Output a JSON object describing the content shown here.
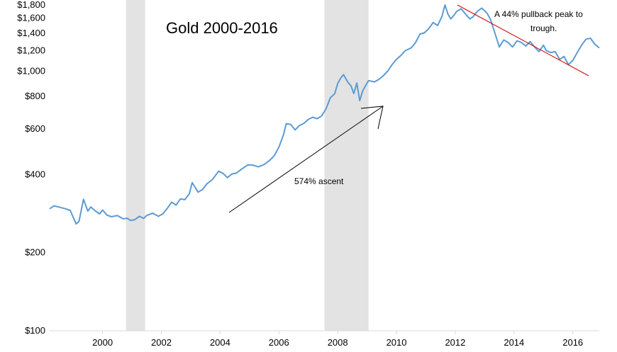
{
  "chart_data": {
    "type": "line",
    "title": "Gold 2000-2016",
    "xlabel": "",
    "ylabel": "",
    "y_scale": "log",
    "ylim": [
      100,
      1800
    ],
    "xlim": [
      1998.2,
      2016.9
    ],
    "y_ticks": [
      {
        "value": 100,
        "label": "$100"
      },
      {
        "value": 200,
        "label": "$200"
      },
      {
        "value": 400,
        "label": "$400"
      },
      {
        "value": 600,
        "label": "$600"
      },
      {
        "value": 800,
        "label": "$800"
      },
      {
        "value": 1000,
        "label": "$1,000"
      },
      {
        "value": 1200,
        "label": "$1,200"
      },
      {
        "value": 1400,
        "label": "$1,400"
      },
      {
        "value": 1600,
        "label": "$1,600"
      },
      {
        "value": 1800,
        "label": "$1,800"
      }
    ],
    "x_ticks": [
      {
        "value": 2000,
        "label": "2000"
      },
      {
        "value": 2002,
        "label": "2002"
      },
      {
        "value": 2004,
        "label": "2004"
      },
      {
        "value": 2006,
        "label": "2006"
      },
      {
        "value": 2008,
        "label": "2008"
      },
      {
        "value": 2010,
        "label": "2010"
      },
      {
        "value": 2012,
        "label": "2012"
      },
      {
        "value": 2014,
        "label": "2014"
      },
      {
        "value": 2016,
        "label": "2016"
      }
    ],
    "recession_bands": [
      {
        "start": 2000.8,
        "end": 2001.45
      },
      {
        "start": 2007.55,
        "end": 2009.05
      }
    ],
    "series": [
      {
        "color": "#5b9bd5",
        "x": [
          1998.2,
          1998.35,
          1998.5,
          1998.7,
          1998.9,
          1999.1,
          1999.2,
          1999.35,
          1999.5,
          1999.6,
          1999.75,
          1999.9,
          2000.0,
          2000.15,
          2000.3,
          2000.5,
          2000.7,
          2000.85,
          2000.95,
          2001.1,
          2001.25,
          2001.4,
          2001.5,
          2001.7,
          2001.9,
          2002.05,
          2002.2,
          2002.35,
          2002.5,
          2002.65,
          2002.8,
          2002.95,
          2003.05,
          2003.25,
          2003.4,
          2003.55,
          2003.75,
          2003.95,
          2004.1,
          2004.25,
          2004.4,
          2004.55,
          2004.75,
          2004.95,
          2005.1,
          2005.3,
          2005.5,
          2005.7,
          2005.85,
          2006.0,
          2006.15,
          2006.25,
          2006.4,
          2006.55,
          2006.7,
          2006.85,
          2007.0,
          2007.15,
          2007.3,
          2007.45,
          2007.6,
          2007.75,
          2007.9,
          2008.0,
          2008.1,
          2008.2,
          2008.35,
          2008.45,
          2008.55,
          2008.65,
          2008.75,
          2008.85,
          2008.95,
          2009.05,
          2009.15,
          2009.25,
          2009.4,
          2009.55,
          2009.7,
          2009.85,
          2010.0,
          2010.15,
          2010.3,
          2010.5,
          2010.65,
          2010.8,
          2010.95,
          2011.1,
          2011.25,
          2011.4,
          2011.55,
          2011.65,
          2011.75,
          2011.85,
          2011.95,
          2012.05,
          2012.2,
          2012.35,
          2012.5,
          2012.6,
          2012.75,
          2012.9,
          2013.0,
          2013.1,
          2013.2,
          2013.35,
          2013.5,
          2013.65,
          2013.8,
          2013.95,
          2014.1,
          2014.25,
          2014.4,
          2014.55,
          2014.7,
          2014.85,
          2015.0,
          2015.1,
          2015.25,
          2015.4,
          2015.55,
          2015.7,
          2015.85,
          2016.0,
          2016.15,
          2016.3,
          2016.45,
          2016.6,
          2016.75,
          2016.9
        ],
        "y": [
          295,
          303,
          300,
          296,
          291,
          258,
          264,
          321,
          289,
          300,
          290,
          282,
          292,
          279,
          275,
          278,
          270,
          271,
          266,
          268,
          276,
          271,
          278,
          284,
          276,
          282,
          296,
          313,
          305,
          322,
          320,
          337,
          372,
          342,
          350,
          368,
          384,
          412,
          404,
          389,
          402,
          405,
          421,
          436,
          435,
          428,
          437,
          455,
          474,
          510,
          566,
          628,
          624,
          594,
          618,
          630,
          652,
          665,
          656,
          672,
          715,
          790,
          820,
          895,
          940,
          970,
          905,
          880,
          820,
          900,
          770,
          840,
          880,
          920,
          915,
          910,
          930,
          960,
          1000,
          1060,
          1110,
          1150,
          1200,
          1230,
          1290,
          1390,
          1405,
          1460,
          1540,
          1500,
          1630,
          1800,
          1660,
          1590,
          1640,
          1700,
          1740,
          1660,
          1590,
          1620,
          1700,
          1750,
          1710,
          1660,
          1580,
          1400,
          1240,
          1320,
          1290,
          1240,
          1310,
          1290,
          1250,
          1300,
          1240,
          1190,
          1260,
          1200,
          1180,
          1190,
          1110,
          1140,
          1060,
          1100,
          1180,
          1260,
          1330,
          1340,
          1270,
          1230
        ]
      }
    ],
    "annotations": {
      "ascent_label": "574% ascent",
      "pullback_label_line1": "A 44%  pullback peak to",
      "pullback_label_line2": "trough."
    }
  }
}
